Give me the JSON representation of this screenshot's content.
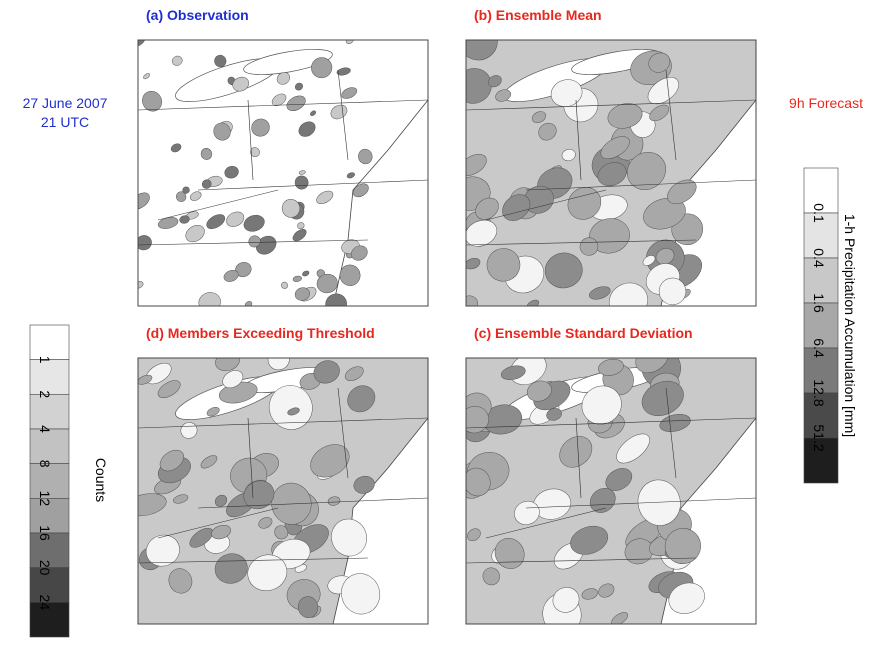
{
  "panels": [
    {
      "label": "(a) Observation",
      "color": "#1f2fd0"
    },
    {
      "label": "(b) Ensemble Mean",
      "color": "#e8281e"
    },
    {
      "label": "(d) Members Exceeding Threshold",
      "color": "#e8281e"
    },
    {
      "label": "(c) Ensemble Standard Deviation",
      "color": "#e8281e"
    }
  ],
  "annotations": {
    "date": "27 June 2007",
    "time": "21 UTC",
    "lead": "9h Forecast"
  },
  "precip_colorbar": {
    "title": "1-h Precipitation Accumulation [mm]",
    "ticks": [
      0.1,
      0.4,
      1.6,
      6.4,
      12.8,
      51.2
    ],
    "colors": [
      "#ffffff",
      "#e4e4e4",
      "#c8c8c8",
      "#a8a8a8",
      "#7a7a7a",
      "#4a4a4a",
      "#1e1e1e"
    ]
  },
  "counts_colorbar": {
    "title": "Counts",
    "ticks": [
      1,
      2,
      4,
      8,
      12,
      16,
      20,
      24
    ],
    "colors": [
      "#ffffff",
      "#e6e6e6",
      "#d2d2d2",
      "#c2c2c2",
      "#b0b0b0",
      "#a0a0a0",
      "#6e6e6e",
      "#474747",
      "#1e1e1e"
    ]
  }
}
